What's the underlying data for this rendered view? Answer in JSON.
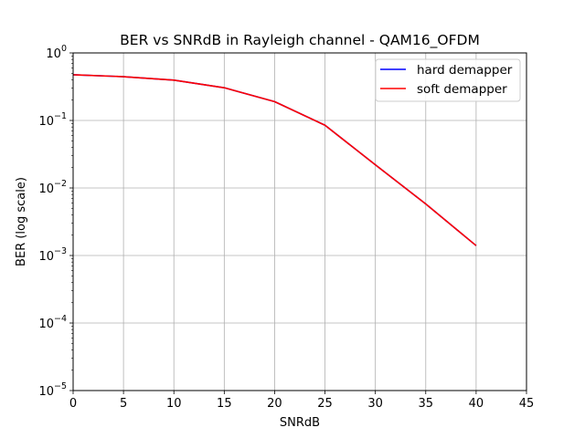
{
  "chart_data": {
    "type": "line",
    "title": "BER vs SNRdB in Rayleigh channel - QAM16_OFDM",
    "xlabel": "SNRdB",
    "ylabel": "BER (log scale)",
    "xlim": [
      0,
      45
    ],
    "ylim": [
      1e-05,
      1
    ],
    "yscale": "log",
    "grid": true,
    "legend_position": "top-right",
    "x_ticks": [
      "0",
      "5",
      "10",
      "15",
      "20",
      "25",
      "30",
      "35",
      "40",
      "45"
    ],
    "y_ticks": [
      {
        "base": "10",
        "exp": "−5"
      },
      {
        "base": "10",
        "exp": "−4"
      },
      {
        "base": "10",
        "exp": "−3"
      },
      {
        "base": "10",
        "exp": "−2"
      },
      {
        "base": "10",
        "exp": "−1"
      },
      {
        "base": "10",
        "exp": "0"
      }
    ],
    "x": [
      0,
      5,
      10,
      15,
      20,
      25,
      30,
      35,
      40
    ],
    "series": [
      {
        "name": "hard demapper",
        "color": "#0000ff",
        "values": [
          0.475,
          0.445,
          0.395,
          0.305,
          0.19,
          0.085,
          0.022,
          0.0058,
          0.0014
        ]
      },
      {
        "name": "soft demapper",
        "color": "#ff0000",
        "values": [
          0.475,
          0.445,
          0.395,
          0.305,
          0.19,
          0.085,
          0.022,
          0.0058,
          0.0014
        ]
      }
    ]
  }
}
